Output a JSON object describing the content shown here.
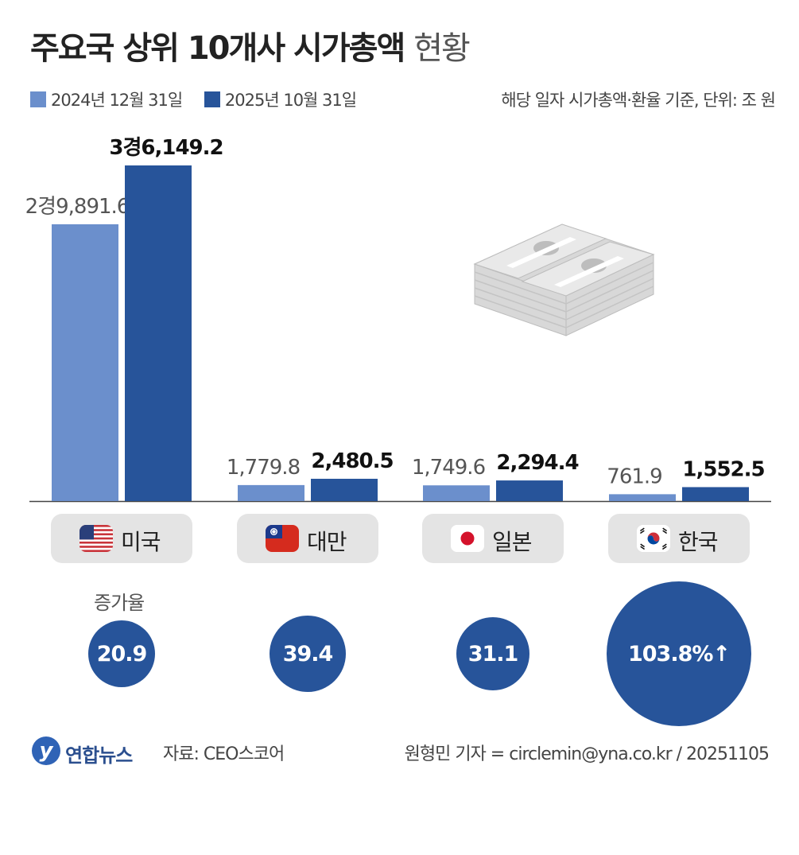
{
  "title": {
    "main": "주요국 상위 10개사 시가총액",
    "sub": "현황"
  },
  "legend": {
    "series1": "2024년 12월 31일",
    "series2": "2025년 10월 31일",
    "note": "해당 일자 시가총액·환율 기준, 단위: 조 원"
  },
  "colors": {
    "series1": "#6b8fcc",
    "series2": "#27549a",
    "circle": "#27549a",
    "pill": "#e4e4e4"
  },
  "chart_data": {
    "type": "bar",
    "categories": [
      "미국",
      "대만",
      "일본",
      "한국"
    ],
    "series": [
      {
        "name": "2024년 12월 31일",
        "values": [
          29891.6,
          1779.8,
          1749.6,
          761.9
        ],
        "labels": [
          "2경9,891.6",
          "1,779.8",
          "1,749.6",
          "761.9"
        ]
      },
      {
        "name": "2025년 10월 31일",
        "values": [
          36149.2,
          2480.5,
          2294.4,
          1552.5
        ],
        "labels": [
          "3경6,149.2",
          "2,480.5",
          "2,294.4",
          "1,552.5"
        ]
      }
    ],
    "unit": "조 원",
    "ylim": [
      0,
      36149.2
    ],
    "grid": false,
    "legend_position": "top-left"
  },
  "categories": [
    {
      "name": "미국",
      "flag": "us-flag-icon"
    },
    {
      "name": "대만",
      "flag": "taiwan-flag-icon"
    },
    {
      "name": "일본",
      "flag": "japan-flag-icon"
    },
    {
      "name": "한국",
      "flag": "korea-flag-icon"
    }
  ],
  "growth": {
    "label": "증가율",
    "values": [
      "20.9",
      "39.4",
      "31.1",
      "103.8%↑"
    ]
  },
  "footer": {
    "logo": "연합뉴스",
    "source": "자료: CEO스코어",
    "credit": "원형민 기자 = circlemin@yna.co.kr / 20251105"
  }
}
